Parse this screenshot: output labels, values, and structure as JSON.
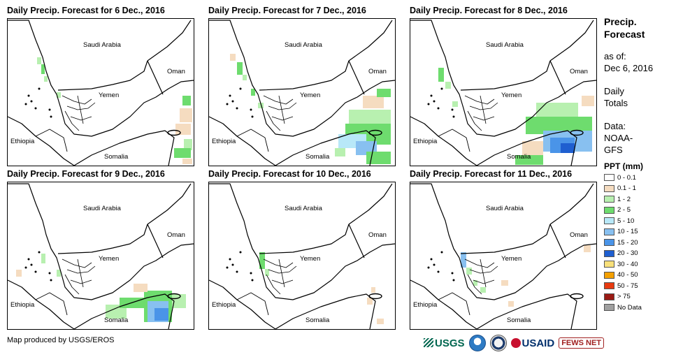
{
  "panels": [
    {
      "title": "Daily Precip. Forecast for 6 Dec., 2016"
    },
    {
      "title": "Daily Precip. Forecast for 7 Dec., 2016"
    },
    {
      "title": "Daily Precip. Forecast for 8 Dec., 2016"
    },
    {
      "title": "Daily Precip. Forecast for 9 Dec., 2016"
    },
    {
      "title": "Daily Precip. Forecast for 10 Dec., 2016"
    },
    {
      "title": "Daily Precip. Forecast for 11 Dec., 2016"
    }
  ],
  "map_labels": {
    "saudi": "Saudi Arabia",
    "oman": "Oman",
    "yemen": "Yemen",
    "ethiopia": "Ethiopia",
    "somalia": "Somalia"
  },
  "legend": {
    "title_1": "Precip.",
    "title_2": "Forecast",
    "asof_1": "as of:",
    "asof_2": "Dec 6, 2016",
    "daily_1": "Daily",
    "daily_2": "Totals",
    "data_1": "Data:",
    "data_2": "NOAA-",
    "data_3": "GFS",
    "ppt_title": "PPT (mm)",
    "classes": [
      {
        "label": "0 - 0.1",
        "color": "#ffffff"
      },
      {
        "label": "0.1 - 1",
        "color": "#f5dcc0"
      },
      {
        "label": "1 - 2",
        "color": "#b8f0b0"
      },
      {
        "label": "2 - 5",
        "color": "#6edc6e"
      },
      {
        "label": "5 - 10",
        "color": "#b8e8f8"
      },
      {
        "label": "10 - 15",
        "color": "#88c0f0"
      },
      {
        "label": "15 - 20",
        "color": "#4a94e8"
      },
      {
        "label": "20 - 30",
        "color": "#1f5fd0"
      },
      {
        "label": "30 - 40",
        "color": "#f8e07a"
      },
      {
        "label": "40 - 50",
        "color": "#f4a000"
      },
      {
        "label": "50 - 75",
        "color": "#e83a10"
      },
      {
        "label": "> 75",
        "color": "#9a1a14"
      },
      {
        "label": "No Data",
        "color": "#a0a0a0"
      }
    ]
  },
  "credit": "Map produced by USGS/EROS",
  "logos": {
    "usgs": "USGS",
    "usaid": "USAID",
    "fews": "FEWS NET"
  }
}
